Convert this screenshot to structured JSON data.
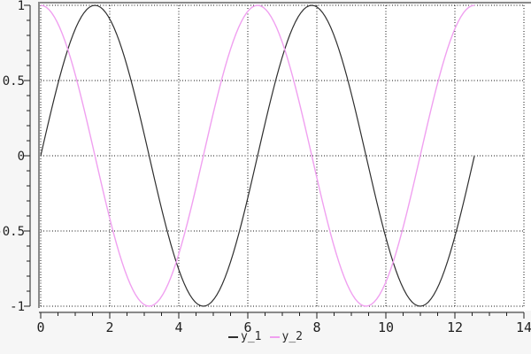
{
  "chart_data": {
    "type": "line",
    "title": "",
    "xlabel": "",
    "ylabel": "",
    "x_range_of_data": [
      0,
      12.566
    ],
    "sample_count": 160,
    "series": [
      {
        "name": "y_1",
        "function": "sin",
        "color": "#2f2f2f",
        "width": 1.2
      },
      {
        "name": "y_2",
        "function": "cos",
        "color": "#f0a0f0",
        "width": 1.4
      }
    ],
    "axes": {
      "x": {
        "min": 0,
        "max": 14,
        "major_tick_step": 2,
        "minor_ticks_per_major": 3,
        "tick_labels": [
          "0",
          "2",
          "4",
          "6",
          "8",
          "10",
          "12",
          "14"
        ]
      },
      "y": {
        "min": -1,
        "max": 1,
        "major_tick_step": 0.5,
        "minor_ticks_per_major": 4,
        "tick_labels": [
          "1",
          "0.5",
          "0",
          "-0.5",
          "-1"
        ],
        "tick_values": [
          1,
          0.5,
          0,
          -0.5,
          -1
        ]
      }
    },
    "grid": {
      "visible": true,
      "style": "dotted",
      "color": "#141414"
    },
    "legend": {
      "position": "bottom-center",
      "entries": [
        {
          "label": "y_1",
          "color": "#2f2f2f"
        },
        {
          "label": "y_2",
          "color": "#f0a0f0"
        }
      ]
    },
    "colors": {
      "figure_background": "#f6f6f6",
      "plot_background": "#ffffff",
      "frame": "#8a8a8a",
      "axis_line": "#1f1f1f"
    }
  }
}
